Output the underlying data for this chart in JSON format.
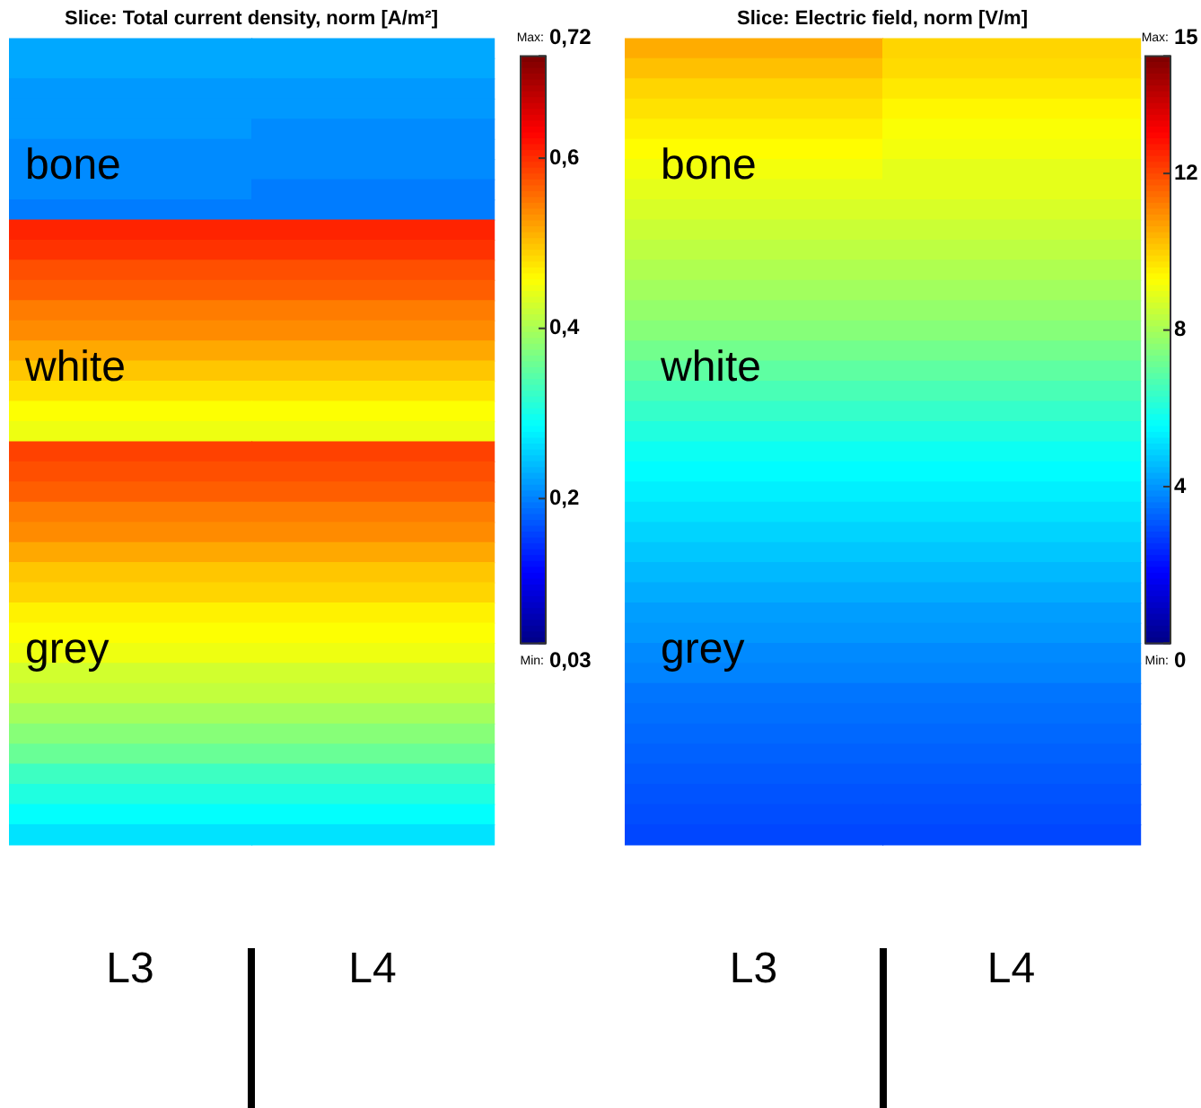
{
  "chart_data": [
    {
      "type": "heatmap",
      "title": "Slice: Total current density, norm [A/m²]",
      "categories": [
        "L3",
        "L4"
      ],
      "y_categories": [
        null,
        null,
        null,
        null,
        null,
        null,
        null,
        null,
        null,
        null,
        null,
        null,
        null,
        null,
        null,
        null,
        null,
        null,
        null,
        null,
        null,
        null,
        null,
        null,
        null,
        null,
        null,
        null,
        null,
        null,
        null,
        null,
        null,
        null,
        null,
        null,
        null,
        null,
        null,
        null
      ],
      "cells": [
        [
          0.23,
          0.23
        ],
        [
          0.23,
          0.23
        ],
        [
          0.22,
          0.22
        ],
        [
          0.22,
          0.22
        ],
        [
          0.22,
          0.21
        ],
        [
          0.21,
          0.21
        ],
        [
          0.21,
          0.21
        ],
        [
          0.21,
          0.2
        ],
        [
          0.2,
          0.2
        ],
        [
          0.61,
          0.61
        ],
        [
          0.6,
          0.6
        ],
        [
          0.58,
          0.58
        ],
        [
          0.57,
          0.57
        ],
        [
          0.55,
          0.55
        ],
        [
          0.54,
          0.54
        ],
        [
          0.52,
          0.52
        ],
        [
          0.5,
          0.5
        ],
        [
          0.48,
          0.48
        ],
        [
          0.46,
          0.46
        ],
        [
          0.45,
          0.45
        ],
        [
          0.59,
          0.59
        ],
        [
          0.58,
          0.58
        ],
        [
          0.57,
          0.57
        ],
        [
          0.55,
          0.55
        ],
        [
          0.54,
          0.54
        ],
        [
          0.52,
          0.52
        ],
        [
          0.5,
          0.5
        ],
        [
          0.49,
          0.49
        ],
        [
          0.47,
          0.47
        ],
        [
          0.46,
          0.46
        ],
        [
          0.45,
          0.45
        ],
        [
          0.43,
          0.43
        ],
        [
          0.42,
          0.42
        ],
        [
          0.4,
          0.4
        ],
        [
          0.38,
          0.38
        ],
        [
          0.36,
          0.36
        ],
        [
          0.33,
          0.33
        ],
        [
          0.31,
          0.31
        ],
        [
          0.29,
          0.29
        ],
        [
          0.27,
          0.27
        ]
      ],
      "clim": [
        0.03,
        0.72
      ],
      "cticks": [
        {
          "value": 0.72,
          "label": "0,72"
        },
        {
          "value": 0.6,
          "label": "0,6"
        },
        {
          "value": 0.4,
          "label": "0,4"
        },
        {
          "value": 0.2,
          "label": "0,2"
        },
        {
          "value": 0.03,
          "label": "0,03"
        }
      ],
      "annotations": [
        "bone",
        "white",
        "grey",
        "Max:",
        "Min:"
      ]
    },
    {
      "type": "heatmap",
      "title": "Slice: Electric field, norm [V/m]",
      "categories": [
        "L3",
        "L4"
      ],
      "y_categories": [
        null,
        null,
        null,
        null,
        null,
        null,
        null,
        null,
        null,
        null,
        null,
        null,
        null,
        null,
        null,
        null,
        null,
        null,
        null,
        null,
        null,
        null,
        null,
        null,
        null,
        null,
        null,
        null,
        null,
        null,
        null,
        null,
        null,
        null,
        null,
        null,
        null,
        null,
        null,
        null
      ],
      "cells": [
        [
          10.6,
          10.0
        ],
        [
          10.3,
          9.9
        ],
        [
          10.0,
          9.7
        ],
        [
          9.8,
          9.5
        ],
        [
          9.6,
          9.3
        ],
        [
          9.4,
          9.2
        ],
        [
          9.2,
          9.0
        ],
        [
          9.0,
          9.0
        ],
        [
          8.8,
          8.8
        ],
        [
          8.6,
          8.6
        ],
        [
          8.4,
          8.4
        ],
        [
          8.2,
          8.2
        ],
        [
          8.0,
          8.0
        ],
        [
          7.8,
          7.8
        ],
        [
          7.6,
          7.6
        ],
        [
          7.3,
          7.3
        ],
        [
          7.0,
          7.0
        ],
        [
          6.7,
          6.7
        ],
        [
          6.4,
          6.4
        ],
        [
          6.1,
          6.1
        ],
        [
          5.8,
          5.8
        ],
        [
          5.6,
          5.6
        ],
        [
          5.4,
          5.4
        ],
        [
          5.2,
          5.2
        ],
        [
          5.0,
          5.0
        ],
        [
          4.8,
          4.8
        ],
        [
          4.6,
          4.6
        ],
        [
          4.4,
          4.4
        ],
        [
          4.2,
          4.2
        ],
        [
          4.1,
          4.1
        ],
        [
          3.9,
          3.9
        ],
        [
          3.8,
          3.8
        ],
        [
          3.6,
          3.6
        ],
        [
          3.5,
          3.5
        ],
        [
          3.4,
          3.4
        ],
        [
          3.3,
          3.3
        ],
        [
          3.2,
          3.2
        ],
        [
          3.1,
          3.1
        ],
        [
          3.0,
          3.0
        ],
        [
          2.9,
          2.9
        ]
      ],
      "clim": [
        0,
        15
      ],
      "cticks": [
        {
          "value": 15,
          "label": "15"
        },
        {
          "value": 12,
          "label": "12"
        },
        {
          "value": 8,
          "label": "8"
        },
        {
          "value": 4,
          "label": "4"
        },
        {
          "value": 0,
          "label": "0"
        }
      ],
      "annotations": [
        "bone",
        "white",
        "grey",
        "Max:",
        "Min:"
      ]
    }
  ]
}
